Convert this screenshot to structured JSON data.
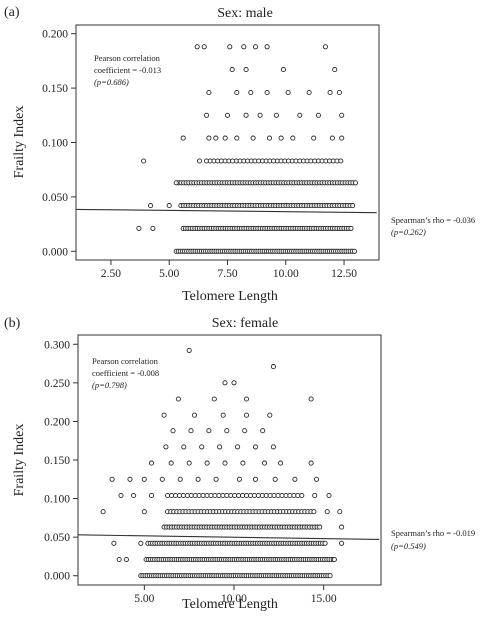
{
  "chart_data": [
    {
      "type": "scatter",
      "panel_label": "(a)",
      "title": "Sex: male",
      "xlabel": "Telomere Length",
      "ylabel": "Frailty Index",
      "xlim": [
        1.0,
        14.0
      ],
      "ylim": [
        -0.008,
        0.208
      ],
      "xticks": [
        2.5,
        5.0,
        7.5,
        10.0,
        12.5
      ],
      "xtick_labels": [
        "2.50",
        "5.00",
        "7.50",
        "10.00",
        "12.50"
      ],
      "yticks": [
        0.0,
        0.05,
        0.1,
        0.15,
        0.2
      ],
      "ytick_labels": [
        "0.000",
        "0.050",
        "0.100",
        "0.150",
        "0.200"
      ],
      "x_plot_range": [
        1.0,
        13.9
      ],
      "y_levels": [
        0.0,
        0.021,
        0.042,
        0.063,
        0.083,
        0.104,
        0.125,
        0.146,
        0.167,
        0.188
      ],
      "bands": [
        {
          "y": 0.0,
          "xmin": 5.3,
          "xmax": 13.0,
          "step": 0.09
        },
        {
          "y": 0.021,
          "xmin": 5.6,
          "xmax": 12.8,
          "step": 0.1
        },
        {
          "y": 0.042,
          "xmin": 5.5,
          "xmax": 12.9,
          "step": 0.11
        },
        {
          "y": 0.063,
          "xmin": 5.4,
          "xmax": 13.0,
          "step": 0.11
        },
        {
          "y": 0.083,
          "xmin": 6.6,
          "xmax": 12.4,
          "step": 0.16
        }
      ],
      "points": [
        [
          3.7,
          0.021
        ],
        [
          4.3,
          0.021
        ],
        [
          4.2,
          0.042
        ],
        [
          5.0,
          0.042
        ],
        [
          5.3,
          0.063
        ],
        [
          3.9,
          0.083
        ],
        [
          6.3,
          0.083
        ],
        [
          5.6,
          0.104
        ],
        [
          6.7,
          0.104
        ],
        [
          7.0,
          0.104
        ],
        [
          7.4,
          0.104
        ],
        [
          7.9,
          0.104
        ],
        [
          8.6,
          0.104
        ],
        [
          9.3,
          0.104
        ],
        [
          9.8,
          0.104
        ],
        [
          10.3,
          0.104
        ],
        [
          11.2,
          0.104
        ],
        [
          12.0,
          0.104
        ],
        [
          12.4,
          0.104
        ],
        [
          6.6,
          0.125
        ],
        [
          7.5,
          0.125
        ],
        [
          8.3,
          0.125
        ],
        [
          8.9,
          0.125
        ],
        [
          9.6,
          0.125
        ],
        [
          10.6,
          0.125
        ],
        [
          11.4,
          0.125
        ],
        [
          12.4,
          0.125
        ],
        [
          6.7,
          0.146
        ],
        [
          7.9,
          0.146
        ],
        [
          8.5,
          0.146
        ],
        [
          9.2,
          0.146
        ],
        [
          10.1,
          0.146
        ],
        [
          11.0,
          0.146
        ],
        [
          11.9,
          0.146
        ],
        [
          12.3,
          0.146
        ],
        [
          7.7,
          0.167
        ],
        [
          8.3,
          0.167
        ],
        [
          9.9,
          0.167
        ],
        [
          12.1,
          0.167
        ],
        [
          6.5,
          0.188
        ],
        [
          9.2,
          0.188
        ],
        [
          6.2,
          0.188
        ],
        [
          7.6,
          0.188
        ],
        [
          8.2,
          0.188
        ],
        [
          8.7,
          0.188
        ],
        [
          11.7,
          0.188
        ]
      ],
      "fit_line": {
        "x": [
          1.0,
          13.9
        ],
        "y": [
          0.0385,
          0.0355
        ]
      },
      "annotations": {
        "pearson_line1": "Pearson correlation",
        "pearson_line2": "coefficient = -0.013",
        "pearson_p": "(p=0.686)",
        "spearman": "Spearman’s rho = -0.036",
        "spearman_p": "(p=0.262)"
      }
    },
    {
      "type": "scatter",
      "panel_label": "(b)",
      "title": "Sex: female",
      "xlabel": "Telomere Length",
      "ylabel": "Frailty Index",
      "xlim": [
        1.3,
        18.2
      ],
      "ylim": [
        -0.012,
        0.312
      ],
      "xticks": [
        5.0,
        10.0,
        15.0
      ],
      "xtick_labels": [
        "5.00",
        "10.00",
        "15.00"
      ],
      "yticks": [
        0.0,
        0.05,
        0.1,
        0.15,
        0.2,
        0.25,
        0.3
      ],
      "ytick_labels": [
        "0.000",
        "0.050",
        "0.100",
        "0.150",
        "0.200",
        "0.250",
        "0.300"
      ],
      "x_plot_range": [
        1.3,
        18.1
      ],
      "y_levels": [
        0.0,
        0.021,
        0.042,
        0.063,
        0.083,
        0.104,
        0.125,
        0.146,
        0.167,
        0.188,
        0.208,
        0.229,
        0.25,
        0.271,
        0.292
      ],
      "bands": [
        {
          "y": 0.0,
          "xmin": 4.8,
          "xmax": 15.4,
          "step": 0.12
        },
        {
          "y": 0.021,
          "xmin": 5.1,
          "xmax": 15.6,
          "step": 0.12
        },
        {
          "y": 0.042,
          "xmin": 5.2,
          "xmax": 15.1,
          "step": 0.13
        },
        {
          "y": 0.063,
          "xmin": 6.1,
          "xmax": 14.8,
          "step": 0.14
        },
        {
          "y": 0.083,
          "xmin": 6.3,
          "xmax": 14.5,
          "step": 0.17
        },
        {
          "y": 0.104,
          "xmin": 6.3,
          "xmax": 13.8,
          "step": 0.22
        }
      ],
      "points": [
        [
          3.6,
          0.021
        ],
        [
          4.0,
          0.021
        ],
        [
          3.3,
          0.042
        ],
        [
          4.8,
          0.042
        ],
        [
          16.0,
          0.042
        ],
        [
          15.6,
          0.021
        ],
        [
          16.0,
          0.063
        ],
        [
          15.9,
          0.083
        ],
        [
          2.7,
          0.083
        ],
        [
          5.0,
          0.083
        ],
        [
          15.2,
          0.083
        ],
        [
          3.7,
          0.104
        ],
        [
          4.4,
          0.104
        ],
        [
          5.4,
          0.104
        ],
        [
          14.5,
          0.104
        ],
        [
          15.3,
          0.104
        ],
        [
          3.2,
          0.125
        ],
        [
          4.2,
          0.125
        ],
        [
          5.0,
          0.125
        ],
        [
          6.0,
          0.125
        ],
        [
          7.0,
          0.125
        ],
        [
          8.0,
          0.125
        ],
        [
          9.0,
          0.125
        ],
        [
          10.3,
          0.125
        ],
        [
          11.2,
          0.125
        ],
        [
          12.3,
          0.125
        ],
        [
          13.4,
          0.125
        ],
        [
          14.6,
          0.125
        ],
        [
          5.4,
          0.146
        ],
        [
          6.5,
          0.146
        ],
        [
          7.5,
          0.146
        ],
        [
          8.5,
          0.146
        ],
        [
          9.5,
          0.146
        ],
        [
          10.5,
          0.146
        ],
        [
          11.7,
          0.146
        ],
        [
          12.6,
          0.146
        ],
        [
          14.3,
          0.146
        ],
        [
          6.2,
          0.167
        ],
        [
          7.2,
          0.167
        ],
        [
          8.2,
          0.167
        ],
        [
          9.2,
          0.167
        ],
        [
          10.2,
          0.167
        ],
        [
          11.2,
          0.167
        ],
        [
          12.2,
          0.167
        ],
        [
          6.6,
          0.188
        ],
        [
          7.6,
          0.188
        ],
        [
          8.6,
          0.188
        ],
        [
          9.6,
          0.188
        ],
        [
          10.6,
          0.188
        ],
        [
          11.6,
          0.188
        ],
        [
          6.1,
          0.208
        ],
        [
          7.8,
          0.208
        ],
        [
          9.4,
          0.208
        ],
        [
          10.7,
          0.208
        ],
        [
          12.0,
          0.208
        ],
        [
          6.9,
          0.229
        ],
        [
          8.9,
          0.229
        ],
        [
          10.7,
          0.229
        ],
        [
          14.3,
          0.229
        ],
        [
          9.5,
          0.25
        ],
        [
          10.0,
          0.25
        ],
        [
          12.2,
          0.271
        ],
        [
          7.5,
          0.292
        ]
      ],
      "fit_line": {
        "x": [
          1.3,
          18.1
        ],
        "y": [
          0.053,
          0.047
        ]
      },
      "annotations": {
        "pearson_line1": "Pearson correlation",
        "pearson_line2": "coefficient = -0.008",
        "pearson_p": "(p=0.798)",
        "spearman": "Spearman’s rho = -0.019",
        "spearman_p": "(p=0.549)"
      }
    }
  ]
}
